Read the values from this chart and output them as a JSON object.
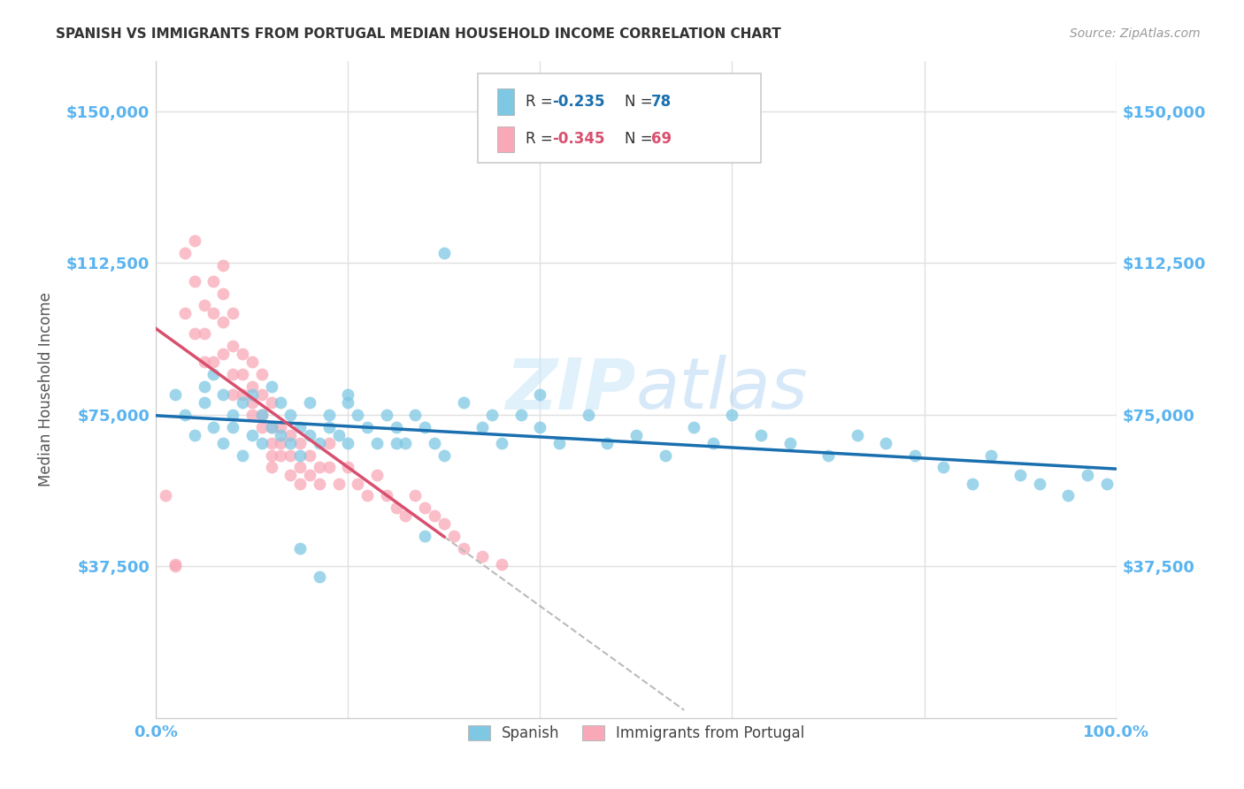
{
  "title": "SPANISH VS IMMIGRANTS FROM PORTUGAL MEDIAN HOUSEHOLD INCOME CORRELATION CHART",
  "source": "Source: ZipAtlas.com",
  "ylabel": "Median Household Income",
  "xlim": [
    0.0,
    1.0
  ],
  "ylim": [
    0,
    162500
  ],
  "yticks": [
    0,
    37500,
    75000,
    112500,
    150000
  ],
  "ytick_labels": [
    "",
    "$37,500",
    "$75,000",
    "$112,500",
    "$150,000"
  ],
  "xticks": [
    0.0,
    0.2,
    0.4,
    0.6,
    0.8,
    1.0
  ],
  "xtick_labels": [
    "0.0%",
    "",
    "",
    "",
    "",
    "100.0%"
  ],
  "color_blue": "#7ec8e3",
  "color_pink": "#f9a8b8",
  "color_blue_line": "#1a6faf",
  "color_pink_line": "#d94f6e",
  "color_dashed_line": "#bbbbbb",
  "watermark": "ZIPatlas",
  "background_color": "#ffffff",
  "grid_color": "#e0e0e0",
  "title_color": "#333333",
  "tick_color": "#5ab4f0",
  "spanish_x": [
    0.02,
    0.03,
    0.04,
    0.05,
    0.05,
    0.06,
    0.06,
    0.07,
    0.07,
    0.08,
    0.08,
    0.09,
    0.09,
    0.1,
    0.1,
    0.11,
    0.11,
    0.12,
    0.12,
    0.13,
    0.13,
    0.14,
    0.14,
    0.15,
    0.15,
    0.16,
    0.16,
    0.17,
    0.18,
    0.18,
    0.19,
    0.2,
    0.2,
    0.21,
    0.22,
    0.23,
    0.24,
    0.25,
    0.26,
    0.27,
    0.28,
    0.29,
    0.3,
    0.32,
    0.34,
    0.36,
    0.38,
    0.4,
    0.42,
    0.45,
    0.47,
    0.5,
    0.53,
    0.56,
    0.58,
    0.6,
    0.63,
    0.66,
    0.7,
    0.73,
    0.76,
    0.79,
    0.82,
    0.85,
    0.87,
    0.9,
    0.92,
    0.95,
    0.97,
    0.99,
    0.3,
    0.35,
    0.4,
    0.2,
    0.25,
    0.28,
    0.15,
    0.17
  ],
  "spanish_y": [
    80000,
    75000,
    70000,
    82000,
    78000,
    85000,
    72000,
    80000,
    68000,
    75000,
    72000,
    78000,
    65000,
    80000,
    70000,
    75000,
    68000,
    82000,
    72000,
    70000,
    78000,
    75000,
    68000,
    72000,
    65000,
    78000,
    70000,
    68000,
    75000,
    72000,
    70000,
    80000,
    68000,
    75000,
    72000,
    68000,
    75000,
    72000,
    68000,
    75000,
    72000,
    68000,
    65000,
    78000,
    72000,
    68000,
    75000,
    72000,
    68000,
    75000,
    68000,
    70000,
    65000,
    72000,
    68000,
    75000,
    70000,
    68000,
    65000,
    70000,
    68000,
    65000,
    62000,
    58000,
    65000,
    60000,
    58000,
    55000,
    60000,
    58000,
    115000,
    75000,
    80000,
    78000,
    68000,
    45000,
    42000,
    35000
  ],
  "portugal_x": [
    0.01,
    0.02,
    0.02,
    0.03,
    0.03,
    0.04,
    0.04,
    0.04,
    0.05,
    0.05,
    0.05,
    0.06,
    0.06,
    0.06,
    0.07,
    0.07,
    0.07,
    0.07,
    0.08,
    0.08,
    0.08,
    0.08,
    0.09,
    0.09,
    0.09,
    0.1,
    0.1,
    0.1,
    0.1,
    0.11,
    0.11,
    0.11,
    0.11,
    0.12,
    0.12,
    0.12,
    0.12,
    0.12,
    0.13,
    0.13,
    0.13,
    0.14,
    0.14,
    0.14,
    0.15,
    0.15,
    0.15,
    0.16,
    0.16,
    0.17,
    0.17,
    0.18,
    0.18,
    0.19,
    0.2,
    0.21,
    0.22,
    0.23,
    0.24,
    0.25,
    0.26,
    0.27,
    0.28,
    0.29,
    0.3,
    0.31,
    0.32,
    0.34,
    0.36
  ],
  "portugal_y": [
    55000,
    38000,
    37500,
    115000,
    100000,
    108000,
    118000,
    95000,
    95000,
    102000,
    88000,
    108000,
    100000,
    88000,
    112000,
    105000,
    98000,
    90000,
    100000,
    92000,
    85000,
    80000,
    90000,
    85000,
    80000,
    88000,
    82000,
    78000,
    75000,
    85000,
    80000,
    75000,
    72000,
    78000,
    72000,
    68000,
    65000,
    62000,
    72000,
    68000,
    65000,
    70000,
    65000,
    60000,
    68000,
    62000,
    58000,
    65000,
    60000,
    62000,
    58000,
    68000,
    62000,
    58000,
    62000,
    58000,
    55000,
    60000,
    55000,
    52000,
    50000,
    55000,
    52000,
    50000,
    48000,
    45000,
    42000,
    40000,
    38000
  ]
}
